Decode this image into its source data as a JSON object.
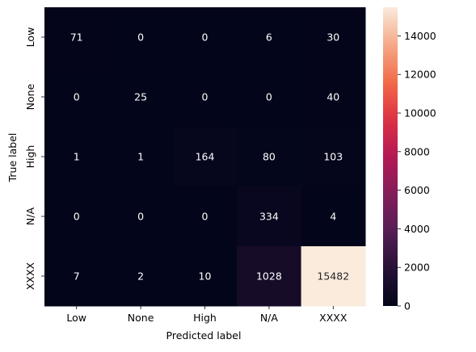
{
  "chart_data": {
    "type": "heatmap",
    "xlabel": "Predicted label",
    "ylabel": "True label",
    "x_categories": [
      "Low",
      "None",
      "High",
      "N/A",
      "XXXX"
    ],
    "y_categories": [
      "Low",
      "None",
      "High",
      "N/A",
      "XXXX"
    ],
    "matrix": [
      [
        71,
        0,
        0,
        6,
        30
      ],
      [
        0,
        25,
        0,
        0,
        40
      ],
      [
        1,
        1,
        164,
        80,
        103
      ],
      [
        0,
        0,
        0,
        334,
        4
      ],
      [
        7,
        2,
        10,
        1028,
        15482
      ]
    ],
    "colorbar": {
      "colormap": "rocket",
      "range": [
        0,
        15482
      ],
      "ticks": [
        0,
        2000,
        4000,
        6000,
        8000,
        10000,
        12000,
        14000
      ]
    }
  }
}
